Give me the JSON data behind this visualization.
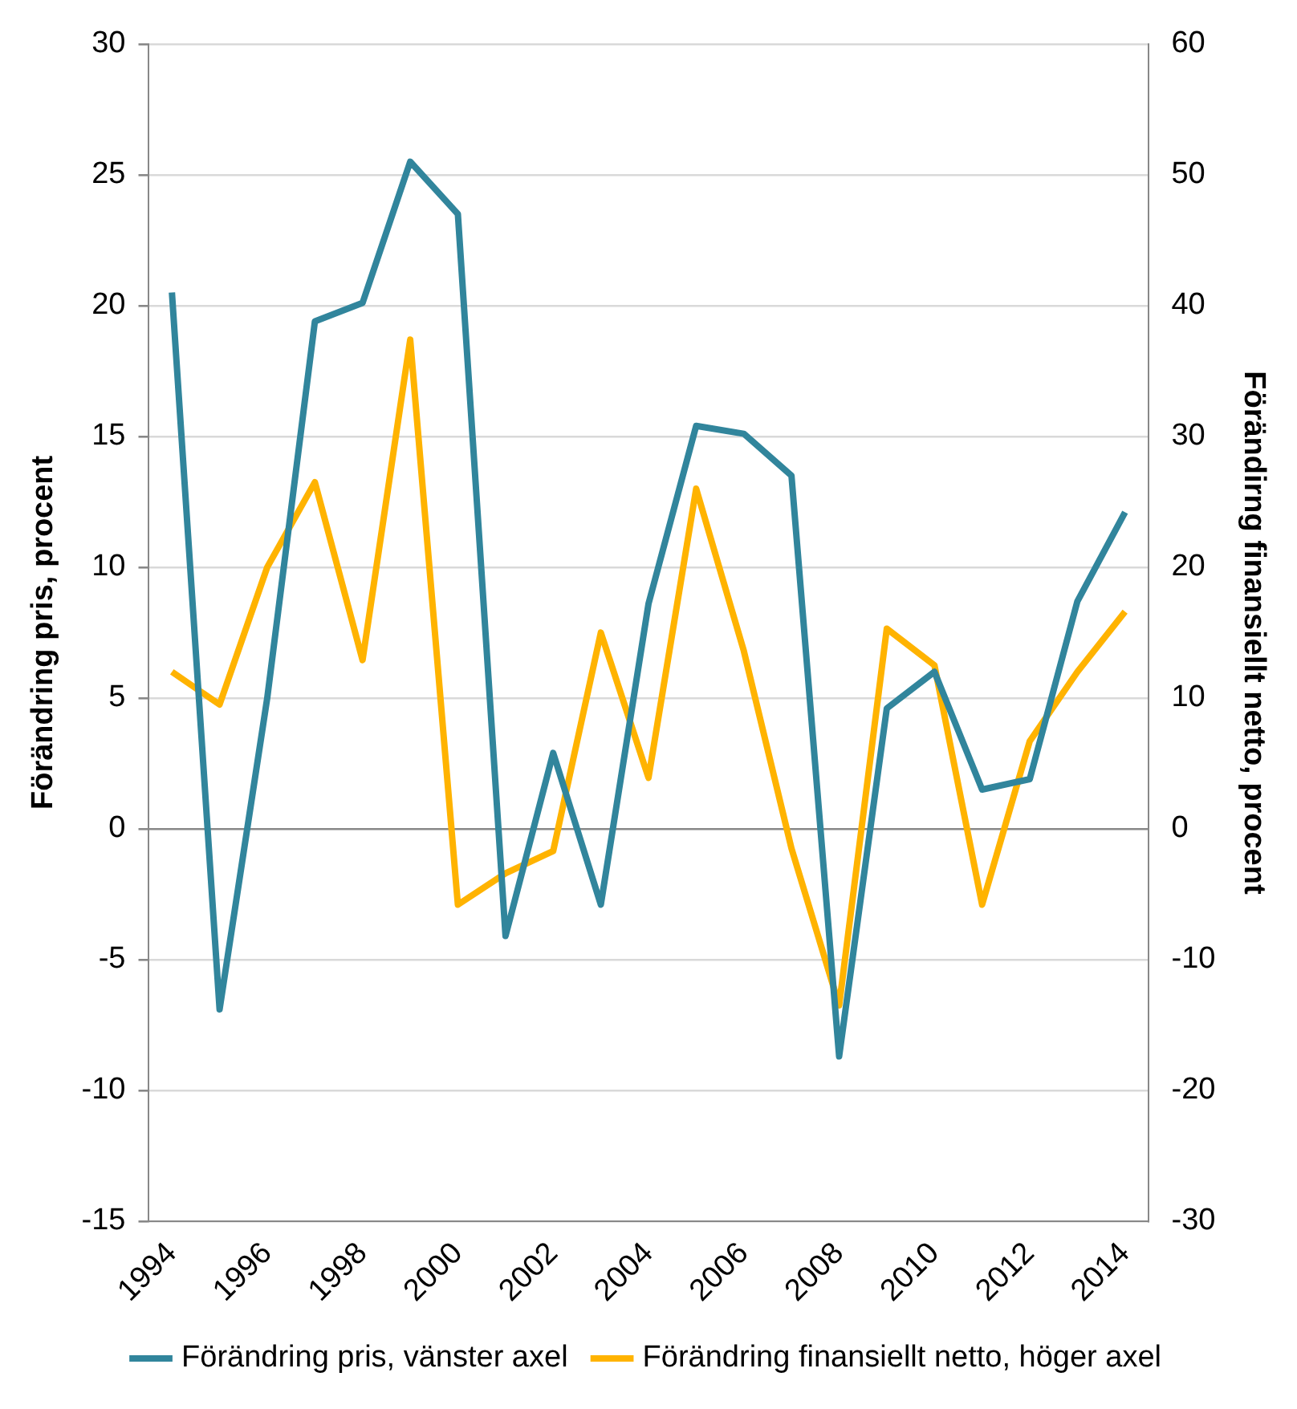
{
  "chart_data": {
    "type": "line",
    "ylabel": "Förändring pris, procent",
    "y2label": "Förändirng finansiellt netto, procent",
    "categories": [
      "1994",
      null,
      "1996",
      null,
      "1998",
      null,
      "2000",
      null,
      "2002",
      null,
      "2004",
      null,
      "2006",
      null,
      "2008",
      null,
      "2010",
      null,
      "2012",
      null,
      "2014"
    ],
    "series": [
      {
        "name": "Förändring pris, vänster axel",
        "color": "#31859c",
        "values": [
          20.5,
          -6.9,
          5,
          19.4,
          20.1,
          25.5,
          23.5,
          -4.1,
          2.9,
          -2.9,
          8.6,
          15.4,
          15.1,
          13.5,
          -8.7,
          4.6,
          6,
          1.5,
          1.9,
          8.7,
          12.1
        ]
      },
      {
        "name": "Förändring finansiellt netto, höger axel",
        "color": "#ffb300",
        "axis": "y2",
        "values": [
          12,
          9.5,
          20,
          26.5,
          12.9,
          37.4,
          -5.8,
          -3.4,
          -1.7,
          15,
          3.9,
          26,
          13.6,
          -1.5,
          -13.5,
          15.3,
          12.5,
          -5.8,
          6.7,
          12,
          16.6
        ]
      }
    ],
    "ylim": [
      -15,
      30
    ],
    "yticks": [
      -15,
      -10,
      -5,
      0,
      5,
      10,
      15,
      20,
      25,
      30
    ],
    "y2lim": [
      -30,
      60
    ],
    "y2ticks": [
      -30,
      -20,
      -10,
      0,
      10,
      20,
      30,
      40,
      50,
      60
    ],
    "grid": "y",
    "legend": "bottom",
    "marker": "none",
    "line_style": "solid"
  }
}
